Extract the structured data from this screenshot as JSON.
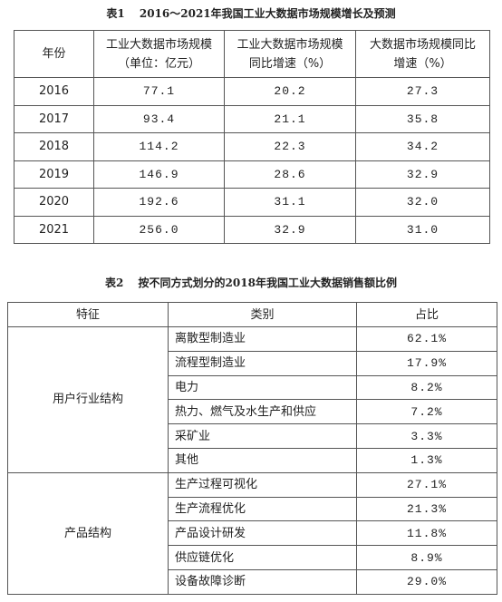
{
  "table1": {
    "title": "表1　 2016～2021年我国工业大数据市场规模增长及预测",
    "header": [
      [
        "年份"
      ],
      [
        "工业大数据市场规模",
        "（单位：亿元）"
      ],
      [
        "工业大数据市场规模",
        "同比增速（%）"
      ],
      [
        "大数据市场规模同比",
        "增速（%）"
      ]
    ],
    "rows": [
      [
        "2016",
        "77.1",
        "20.2",
        "27.3"
      ],
      [
        "2017",
        "93.4",
        "21.1",
        "35.8"
      ],
      [
        "2018",
        "114.2",
        "22.3",
        "34.2"
      ],
      [
        "2019",
        "146.9",
        "28.6",
        "32.9"
      ],
      [
        "2020",
        "192.6",
        "31.1",
        "32.0"
      ],
      [
        "2021",
        "256.0",
        "32.9",
        "31.0"
      ]
    ]
  },
  "table2": {
    "title": "表2　 按不同方式划分的2018年我国工业大数据销售额比例",
    "header": [
      "特征",
      "类别",
      "占比"
    ],
    "groups": [
      {
        "feature": "用户行业结构",
        "items": [
          {
            "category": "离散型制造业",
            "share": "62.1%"
          },
          {
            "category": "流程型制造业",
            "share": "17.9%"
          },
          {
            "category": "电力",
            "share": "8.2%"
          },
          {
            "category": "热力、燃气及水生产和供应",
            "share": "7.2%"
          },
          {
            "category": "采矿业",
            "share": "3.3%"
          },
          {
            "category": "其他",
            "share": "1.3%"
          }
        ]
      },
      {
        "feature": "产品结构",
        "items": [
          {
            "category": "生产过程可视化",
            "share": "27.1%"
          },
          {
            "category": "生产流程优化",
            "share": "21.3%"
          },
          {
            "category": "产品设计研发",
            "share": "11.8%"
          },
          {
            "category": "供应链优化",
            "share": "8.9%"
          },
          {
            "category": "设备故障诊断",
            "share": "29.0%"
          }
        ]
      }
    ]
  }
}
